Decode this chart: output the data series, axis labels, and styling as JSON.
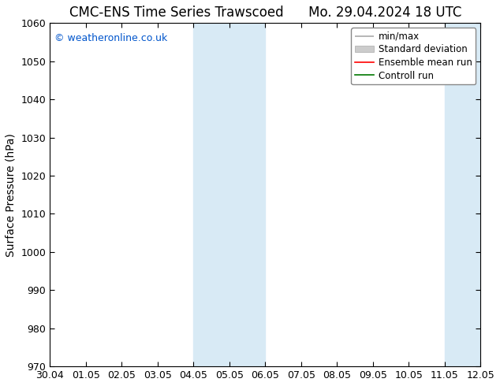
{
  "title_left": "CMC-ENS Time Series Trawscoed",
  "title_right": "Mo. 29.04.2024 18 UTC",
  "ylabel": "Surface Pressure (hPa)",
  "ylim": [
    970,
    1060
  ],
  "yticks": [
    970,
    980,
    990,
    1000,
    1010,
    1020,
    1030,
    1040,
    1050,
    1060
  ],
  "x_labels": [
    "30.04",
    "01.05",
    "02.05",
    "03.05",
    "04.05",
    "05.05",
    "06.05",
    "07.05",
    "08.05",
    "09.05",
    "10.05",
    "11.05",
    "12.05"
  ],
  "x_values": [
    0,
    1,
    2,
    3,
    4,
    5,
    6,
    7,
    8,
    9,
    10,
    11,
    12
  ],
  "shaded_bands": [
    {
      "xmin": 4,
      "xmax": 6,
      "color": "#d8eaf5"
    },
    {
      "xmin": 11,
      "xmax": 12,
      "color": "#d8eaf5"
    }
  ],
  "copyright_text": "© weatheronline.co.uk",
  "copyright_color": "#0055cc",
  "background_color": "#ffffff",
  "legend_items": [
    {
      "label": "min/max",
      "color": "#aaaaaa"
    },
    {
      "label": "Standard deviation",
      "color": "#cccccc"
    },
    {
      "label": "Ensemble mean run",
      "color": "#ff0000"
    },
    {
      "label": "Controll run",
      "color": "#007700"
    }
  ],
  "figsize": [
    6.34,
    4.9
  ],
  "dpi": 100,
  "title_fontsize": 12,
  "ylabel_fontsize": 10,
  "tick_fontsize": 9,
  "legend_fontsize": 8.5,
  "copyright_fontsize": 9
}
